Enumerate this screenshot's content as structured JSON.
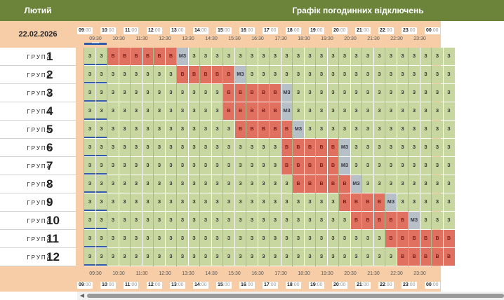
{
  "header": {
    "month": "Лютий",
    "title": "Графік погодинних відключень"
  },
  "date": "22.02.2026",
  "group_word": "ГРУПА",
  "hours": [
    "09",
    "10",
    "11",
    "12",
    "13",
    "14",
    "15",
    "16",
    "17",
    "18",
    "19",
    "20",
    "21",
    "22",
    "23",
    "00"
  ],
  "hours_suffix": ":00",
  "half_hours": [
    "09:30",
    "10:30",
    "11:30",
    "12:30",
    "13:30",
    "14:30",
    "15:30",
    "16:30",
    "17:30",
    "18:30",
    "19:30",
    "20:30",
    "21:30",
    "22:30",
    "23:30"
  ],
  "current_slot_label": "09:30",
  "codes": {
    "z": "З",
    "v": "В",
    "m": "МЗ"
  },
  "colors": {
    "on": "#c8d7a0",
    "off": "#e07060",
    "maybe": "#b7c0c7",
    "header": "#6b8439",
    "accent": "#2f5aa8"
  },
  "groups": [
    {
      "num": "1",
      "slots": "zzvvvvvvmzzzzzzzzzzzzzzzzzzzzzzz"
    },
    {
      "num": "2",
      "slots": "zzzzzzzzvvvvvmzzzzzzzzzzzzzzzzzz"
    },
    {
      "num": "3",
      "slots": "zzzzzzzzzzzzvvvvvmzzzzzzzzzzzzzz"
    },
    {
      "num": "4",
      "slots": "zzzzzzzzzzzzvvvvvmzzzzzzzzzzzzzz"
    },
    {
      "num": "5",
      "slots": "zzzzzzzzzzzzzvvvvvmzzzzzzzzzzzzz"
    },
    {
      "num": "6",
      "slots": "zzzzzzzzzzzzzzzzzvvvvvmzzzzzzzzz"
    },
    {
      "num": "7",
      "slots": "zzzzzzzzzzzzzzzzzvvvvvmzzzzzzzzz"
    },
    {
      "num": "8",
      "slots": "zzzzzzzzzzzzzzzzzzvvvvvmzzzzzzzz"
    },
    {
      "num": "9",
      "slots": "zzzzzzzzzzzzzzzzzzzzzzvvvvmzzzzz"
    },
    {
      "num": "10",
      "slots": "zzzzzzzzzzzzzzzzzzzzzzzvvvvvmzzz"
    },
    {
      "num": "11",
      "slots": "zzzzzzzzzzzzzzzzzzzzzzzzzzvvvvvv"
    },
    {
      "num": "12",
      "slots": "zzzzzzzzzzzzzzzzzzzzzzzzzzzvvvvv"
    }
  ]
}
